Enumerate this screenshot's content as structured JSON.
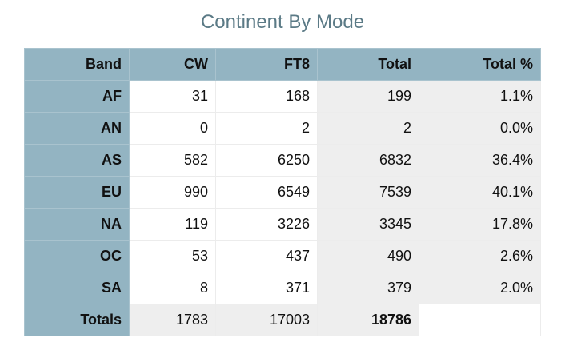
{
  "title": "Continent By Mode",
  "table": {
    "headers": [
      "Band",
      "CW",
      "FT8",
      "Total",
      "Total %"
    ],
    "rows": [
      {
        "band": "AF",
        "cw": "31",
        "ft8": "168",
        "total": "199",
        "pct": "1.1%"
      },
      {
        "band": "AN",
        "cw": "0",
        "ft8": "2",
        "total": "2",
        "pct": "0.0%"
      },
      {
        "band": "AS",
        "cw": "582",
        "ft8": "6250",
        "total": "6832",
        "pct": "36.4%"
      },
      {
        "band": "EU",
        "cw": "990",
        "ft8": "6549",
        "total": "7539",
        "pct": "40.1%"
      },
      {
        "band": "NA",
        "cw": "119",
        "ft8": "3226",
        "total": "3345",
        "pct": "17.8%"
      },
      {
        "band": "OC",
        "cw": "53",
        "ft8": "437",
        "total": "490",
        "pct": "2.6%"
      },
      {
        "band": "SA",
        "cw": "8",
        "ft8": "371",
        "total": "379",
        "pct": "2.0%"
      }
    ],
    "totals": {
      "label": "Totals",
      "cw": "1783",
      "ft8": "17003",
      "total": "18786",
      "pct": ""
    }
  },
  "colors": {
    "header_bg": "#93b4c2",
    "title": "#5b7a86",
    "shaded_cell": "#eeeeee"
  }
}
